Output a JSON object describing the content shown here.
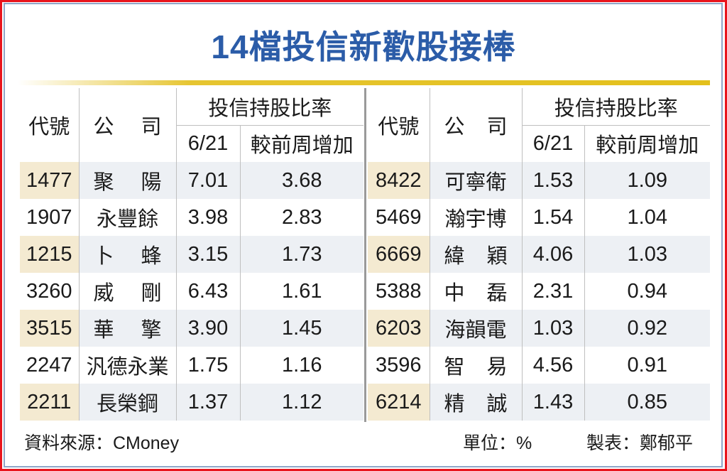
{
  "title": "14檔投信新歡股接棒",
  "headers": {
    "code": "代號",
    "company": [
      "公",
      "司"
    ],
    "ratio": "投信持股比率",
    "date": "6/21",
    "increase": "較前周增加"
  },
  "left_rows": [
    {
      "code": "1477",
      "company": [
        "聚",
        "陽"
      ],
      "ratio": "7.01",
      "increase": "3.68"
    },
    {
      "code": "1907",
      "company": [
        "永豐餘"
      ],
      "ratio": "3.98",
      "increase": "2.83"
    },
    {
      "code": "1215",
      "company": [
        "卜",
        "蜂"
      ],
      "ratio": "3.15",
      "increase": "1.73"
    },
    {
      "code": "3260",
      "company": [
        "威",
        "剛"
      ],
      "ratio": "6.43",
      "increase": "1.61"
    },
    {
      "code": "3515",
      "company": [
        "華",
        "擎"
      ],
      "ratio": "3.90",
      "increase": "1.45"
    },
    {
      "code": "2247",
      "company": [
        "汎德永業"
      ],
      "ratio": "1.75",
      "increase": "1.16"
    },
    {
      "code": "2211",
      "company": [
        "長榮鋼"
      ],
      "ratio": "1.37",
      "increase": "1.12"
    }
  ],
  "right_rows": [
    {
      "code": "8422",
      "company": [
        "可寧衛"
      ],
      "ratio": "1.53",
      "increase": "1.09"
    },
    {
      "code": "5469",
      "company": [
        "瀚宇博"
      ],
      "ratio": "1.54",
      "increase": "1.04"
    },
    {
      "code": "6669",
      "company": [
        "緯",
        "穎"
      ],
      "ratio": "4.06",
      "increase": "1.03"
    },
    {
      "code": "5388",
      "company": [
        "中",
        "磊"
      ],
      "ratio": "2.31",
      "increase": "0.94"
    },
    {
      "code": "6203",
      "company": [
        "海韻電"
      ],
      "ratio": "1.03",
      "increase": "0.92"
    },
    {
      "code": "3596",
      "company": [
        "智",
        "易"
      ],
      "ratio": "4.56",
      "increase": "0.91"
    },
    {
      "code": "6214",
      "company": [
        "精",
        "誠"
      ],
      "ratio": "1.43",
      "increase": "0.85"
    }
  ],
  "footer": {
    "source": "資料來源：CMoney",
    "unit": "單位：%",
    "author": "製表：鄭郁平"
  },
  "colors": {
    "title": "#2b5ca8",
    "frame": "#e8141c",
    "row_alt": "#edf0f4",
    "code_alt": "#f4ead1"
  }
}
